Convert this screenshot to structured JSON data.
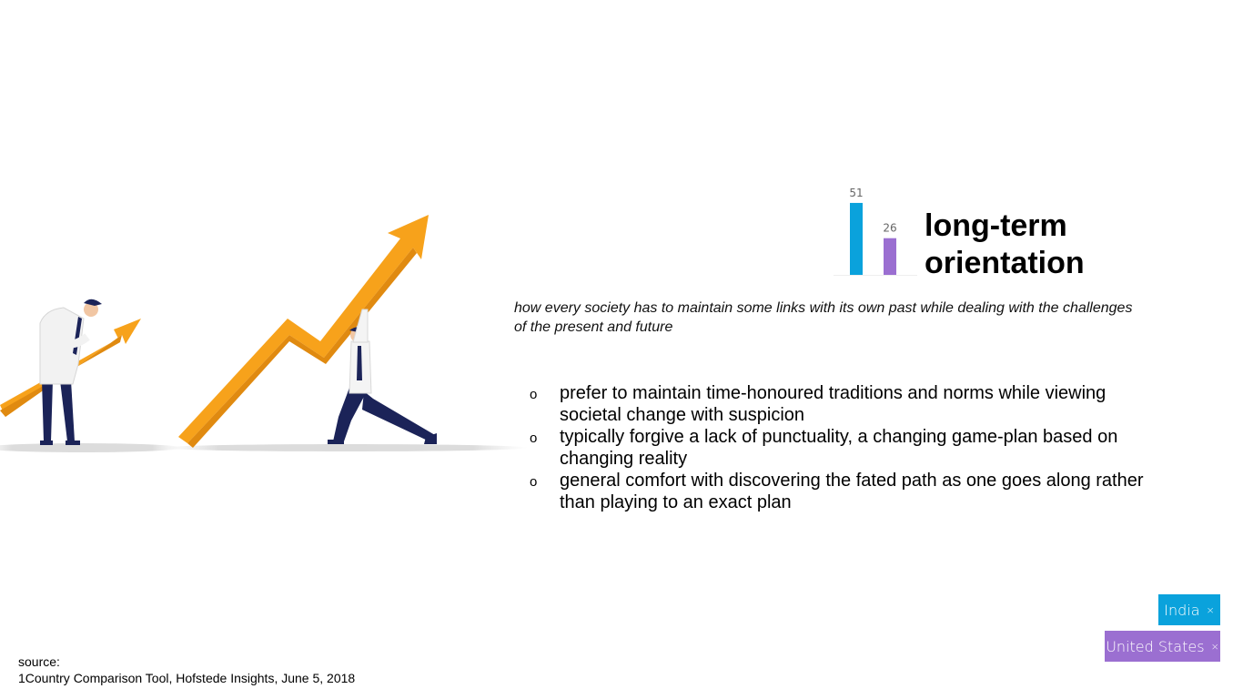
{
  "slide": {
    "title_line1": "long-term",
    "title_line2": "orientation",
    "definition": "how every society has to maintain some links with its own past while dealing with the challenges of the present and future",
    "bullets": [
      {
        "marker": "o",
        "text": "prefer to maintain time-honoured traditions and norms while viewing societal change with suspicion"
      },
      {
        "marker": "o",
        "text": "typically forgive a lack of punctuality, a changing game-plan based on changing reality"
      },
      {
        "marker": "o",
        "text": "general comfort with discovering the fated path as one goes along rather than playing to an exact plan"
      }
    ],
    "source": {
      "label": "source:",
      "citation": "1Country Comparison Tool, Hofstede Insights, June 5, 2018"
    }
  },
  "legend": {
    "india_label": "India",
    "us_label": "United States",
    "remove_symbol": "×"
  },
  "chart_data": {
    "type": "bar",
    "categories": [
      "India",
      "United States"
    ],
    "values": [
      51,
      26
    ],
    "colors": [
      "#0aa2dc",
      "#9b6fd1"
    ],
    "value_labels": [
      "51",
      "26"
    ],
    "title": "",
    "xlabel": "",
    "ylabel": "",
    "ylim": [
      0,
      100
    ]
  },
  "colors": {
    "india": "#0aa2dc",
    "united_states": "#9b6fd1",
    "arrow": "#f7a21b",
    "suit": "#1b2358"
  },
  "illustration": {
    "icon": "business-growth-arrows-illustration"
  }
}
